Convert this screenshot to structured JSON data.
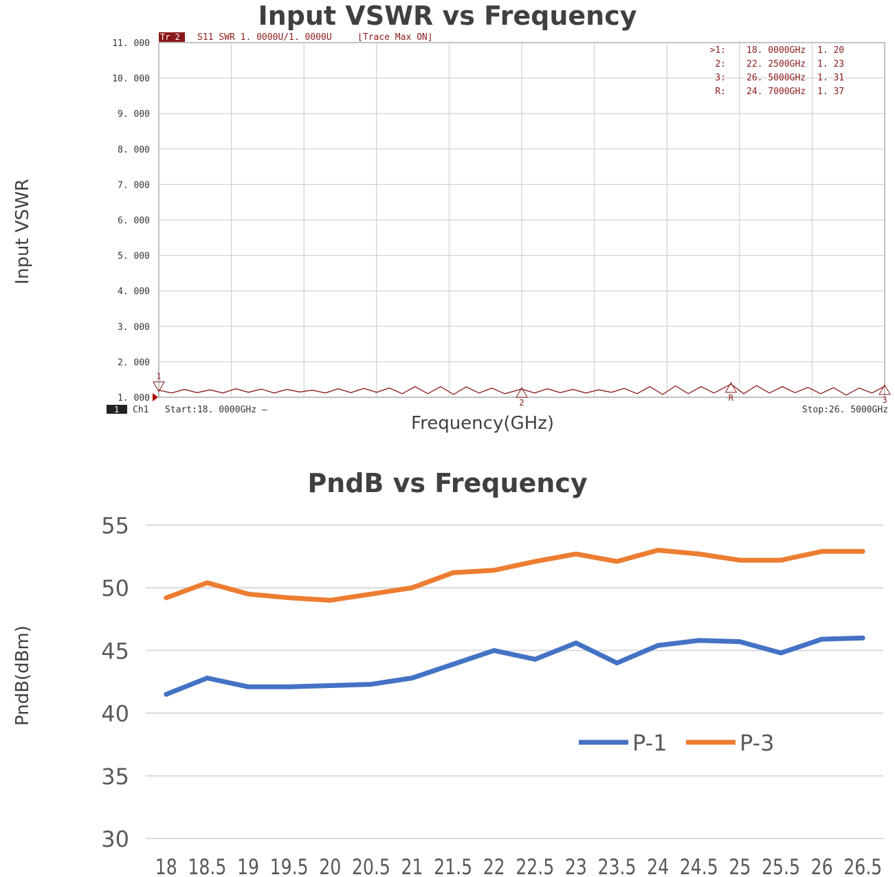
{
  "chart_data": [
    {
      "type": "line",
      "title": "Input VSWR vs Frequency",
      "xlabel": "Frequency(GHz)",
      "ylabel": "Input VSWR",
      "ylim": [
        1.0,
        11.0
      ],
      "xlim": [
        18.0,
        26.5
      ],
      "y_ticks": [
        "11. 000",
        "10. 000",
        "9. 000",
        "8. 000",
        "7. 000",
        "6. 000",
        "5. 000",
        "4. 000",
        "3. 000",
        "2. 000",
        "1. 000"
      ],
      "grid": true,
      "header": {
        "trace_tag": "Tr 2",
        "trace_info": "S11  SWR  1. 0000U/1. 0000U",
        "trace_mode": "⌊Trace Max ON⌋"
      },
      "footer": {
        "channel_tag": "1",
        "channel": "Ch1",
        "start": "Start:18. 0000GHz  —",
        "stop": "Stop:26. 5000GHz"
      },
      "markers": [
        {
          "label": ">1:",
          "freq": "18. 0000GHz",
          "value": "1. 20",
          "x": 18.0,
          "y": 1.2,
          "tag": "1"
        },
        {
          "label": "2:",
          "freq": "22. 2500GHz",
          "value": "1. 23",
          "x": 22.25,
          "y": 1.23,
          "tag": "2"
        },
        {
          "label": "3:",
          "freq": "26. 5000GHz",
          "value": "1. 31",
          "x": 26.5,
          "y": 1.31,
          "tag": "3"
        },
        {
          "label": "R:",
          "freq": "24. 7000GHz",
          "value": "1. 37",
          "x": 24.7,
          "y": 1.37,
          "tag": "R"
        }
      ],
      "series": [
        {
          "x": [
            18.0,
            18.15,
            18.3,
            18.45,
            18.6,
            18.75,
            18.9,
            19.05,
            19.2,
            19.35,
            19.5,
            19.65,
            19.8,
            19.95,
            20.1,
            20.25,
            20.4,
            20.55,
            20.7,
            20.85,
            21.0,
            21.15,
            21.3,
            21.45,
            21.6,
            21.75,
            21.9,
            22.05,
            22.25,
            22.4,
            22.55,
            22.7,
            22.85,
            23.0,
            23.15,
            23.3,
            23.45,
            23.6,
            23.75,
            23.9,
            24.05,
            24.2,
            24.35,
            24.5,
            24.7,
            24.85,
            25.0,
            25.15,
            25.3,
            25.45,
            25.6,
            25.75,
            25.9,
            26.05,
            26.2,
            26.35,
            26.5
          ],
          "y": [
            1.2,
            1.12,
            1.22,
            1.13,
            1.21,
            1.12,
            1.24,
            1.14,
            1.23,
            1.12,
            1.22,
            1.15,
            1.2,
            1.12,
            1.24,
            1.13,
            1.25,
            1.14,
            1.26,
            1.1,
            1.3,
            1.1,
            1.3,
            1.08,
            1.29,
            1.12,
            1.26,
            1.1,
            1.23,
            1.12,
            1.24,
            1.13,
            1.22,
            1.12,
            1.21,
            1.14,
            1.25,
            1.1,
            1.3,
            1.08,
            1.32,
            1.1,
            1.3,
            1.12,
            1.37,
            1.1,
            1.33,
            1.12,
            1.3,
            1.13,
            1.28,
            1.1,
            1.27,
            1.06,
            1.26,
            1.12,
            1.31
          ],
          "color": "#8b1a1a"
        }
      ]
    },
    {
      "type": "line",
      "title": "PndB vs Frequency",
      "xlabel": "",
      "ylabel": "PndB(dBm)",
      "ylim": [
        30,
        55
      ],
      "y_ticks": [
        55,
        50,
        45,
        40,
        35,
        30
      ],
      "categories": [
        "18",
        "18.5",
        "19",
        "19.5",
        "20",
        "20.5",
        "21",
        "21.5",
        "22",
        "22.5",
        "23",
        "23.5",
        "24",
        "24.5",
        "25",
        "25.5",
        "26",
        "26.5"
      ],
      "grid": true,
      "legend": "center-right",
      "series": [
        {
          "name": "P-1",
          "color": "#4472c4",
          "values": [
            41.5,
            42.8,
            42.1,
            42.1,
            42.2,
            42.3,
            42.8,
            43.9,
            45.0,
            44.3,
            45.6,
            44.0,
            45.4,
            45.8,
            45.7,
            44.8,
            45.9,
            46.0
          ]
        },
        {
          "name": "P-3",
          "color": "#ed7d31",
          "values": [
            49.2,
            50.4,
            49.5,
            49.2,
            49.0,
            49.5,
            50.0,
            51.2,
            51.4,
            52.1,
            52.7,
            52.1,
            53.0,
            52.7,
            52.2,
            52.2,
            52.9,
            52.9
          ]
        }
      ]
    }
  ]
}
